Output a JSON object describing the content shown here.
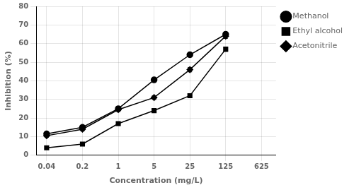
{
  "chart_data": {
    "type": "line",
    "x": [
      0.04,
      0.2,
      1,
      5,
      25,
      125
    ],
    "series": [
      {
        "name": "Methanol",
        "color": "#000000",
        "marker": "circle",
        "values": [
          11.5,
          15.0,
          25.0,
          40.5,
          54.0,
          65.0
        ],
        "errors": [
          0.8,
          0.8,
          1.0,
          1.0,
          1.2,
          1.2
        ]
      },
      {
        "name": "Ethyl alcohol",
        "color": "#000000",
        "marker": "square",
        "values": [
          4.0,
          6.0,
          17.0,
          24.0,
          32.0,
          57.0
        ],
        "errors": [
          0.5,
          0.5,
          0.8,
          0.8,
          1.0,
          1.2
        ]
      },
      {
        "name": "Acetonitrile",
        "color": "#000000",
        "marker": "diamond",
        "values": [
          10.5,
          14.0,
          24.5,
          31.0,
          46.0,
          64.0
        ],
        "errors": [
          0.8,
          0.8,
          1.0,
          1.0,
          1.2,
          1.2
        ]
      }
    ],
    "xlabel": "Concentration (mg/L)",
    "ylabel": "Inhibition (%)",
    "xlim": [
      0.025,
      1200
    ],
    "xticks": [
      0.04,
      0.2,
      1,
      5,
      25,
      125,
      625
    ],
    "ylim": [
      0,
      80
    ],
    "yticks": [
      0,
      10,
      20,
      30,
      40,
      50,
      60,
      70,
      80
    ],
    "log": "x",
    "grid": true,
    "legend": "right"
  }
}
